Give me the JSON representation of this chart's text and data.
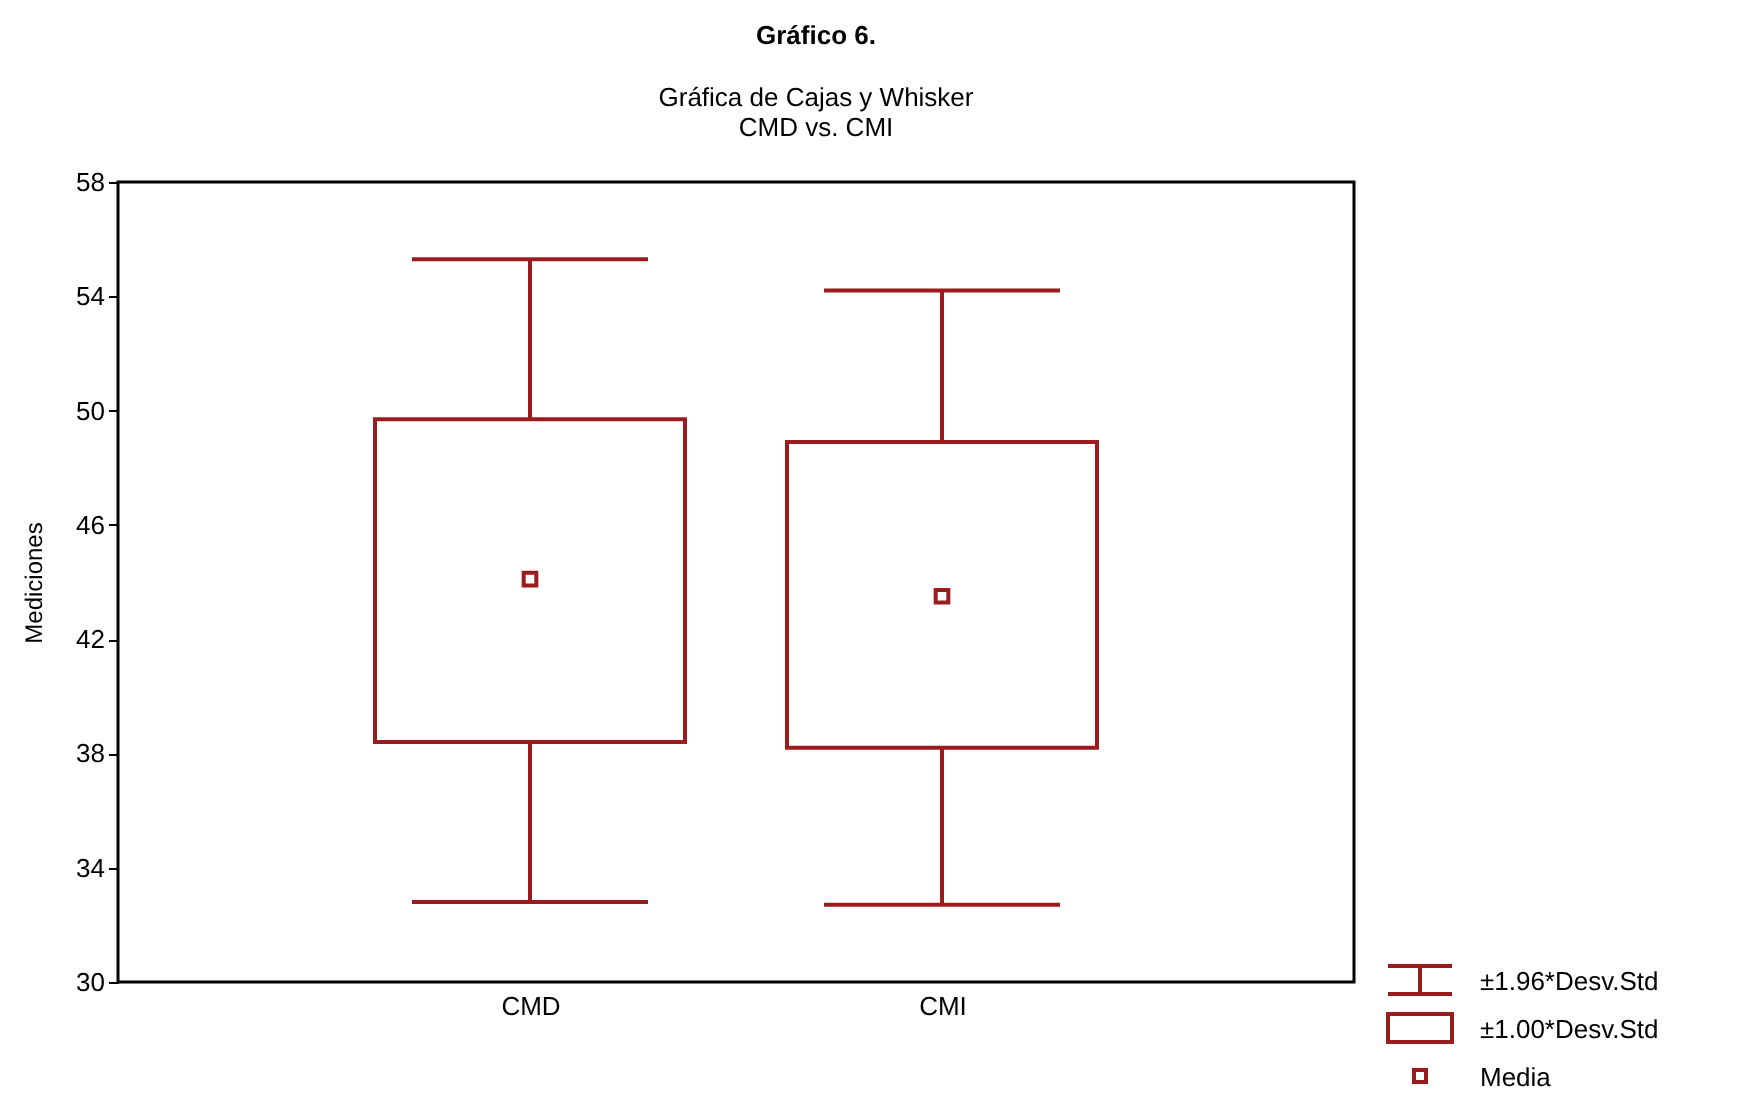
{
  "chart_data": {
    "type": "box",
    "title": "Gráfico 6.",
    "subtitle": "Gráfica de Cajas y Whisker\nCMD vs. CMI",
    "ylabel": "Mediciones",
    "categories": [
      "CMD",
      "CMI"
    ],
    "boxes": [
      {
        "low": 32.8,
        "q1": 38.4,
        "q3": 49.7,
        "high": 55.3,
        "mean": 44.1
      },
      {
        "low": 32.7,
        "q1": 38.2,
        "q3": 48.9,
        "high": 54.2,
        "mean": 43.5
      }
    ],
    "color": "#9b1c1c",
    "ylim": [
      30,
      58
    ],
    "yticks": [
      30,
      34,
      38,
      42,
      46,
      50,
      54,
      58
    ],
    "grid": false,
    "annotations": [
      "±1.96*Desv.Std",
      "±1.00*Desv.Std",
      "Media"
    ]
  }
}
